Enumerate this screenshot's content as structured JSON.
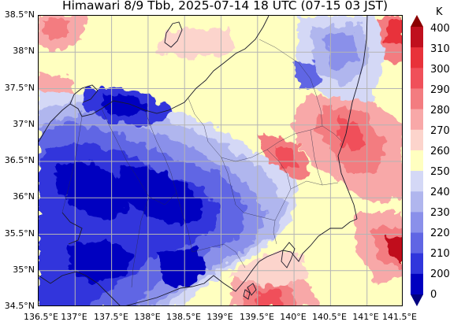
{
  "title": "Himawari 8/9 Tbb, 2025-07-14 18 UTC (07-15 03 JST)",
  "axes": {
    "lat_ticks": [
      "38.5°N",
      "38°N",
      "37.5°N",
      "37°N",
      "36.5°N",
      "36°N",
      "35.5°N",
      "35°N",
      "34.5°N"
    ],
    "lon_ticks": [
      "136.5°E",
      "137°E",
      "137.5°E",
      "138°E",
      "138.5°E",
      "139°E",
      "139.5°E",
      "140°E",
      "140.5°E",
      "141°E",
      "141.5°E"
    ],
    "lat_range": [
      34.5,
      38.5
    ],
    "lon_range": [
      136.5,
      141.5
    ],
    "grid": true
  },
  "colorbar": {
    "unit": "K",
    "ticks": [
      "400",
      "310",
      "300",
      "290",
      "280",
      "270",
      "260",
      "250",
      "240",
      "230",
      "220",
      "210",
      "200",
      "0"
    ],
    "colors": [
      "#8b0000",
      "#c0101e",
      "#e8323a",
      "#f0505a",
      "#f37c80",
      "#f8a8a8",
      "#fcd4cc",
      "#ffffc0",
      "#d4d8f6",
      "#b0b6ee",
      "#8a90ea",
      "#6066e4",
      "#3036dc",
      "#0000c0",
      "#000080"
    ],
    "extend": "both"
  },
  "chart_data": {
    "type": "heatmap",
    "title": "Himawari 8/9 Tbb, 2025-07-14 18 UTC (07-15 03 JST)",
    "variable": "Tbb",
    "unit": "K",
    "x": "longitude",
    "y": "latitude",
    "xlim": [
      136.5,
      141.5
    ],
    "ylim": [
      34.5,
      38.5
    ],
    "levels": [
      0,
      200,
      210,
      220,
      230,
      240,
      250,
      260,
      270,
      280,
      290,
      300,
      310,
      400
    ],
    "grid": true
  }
}
